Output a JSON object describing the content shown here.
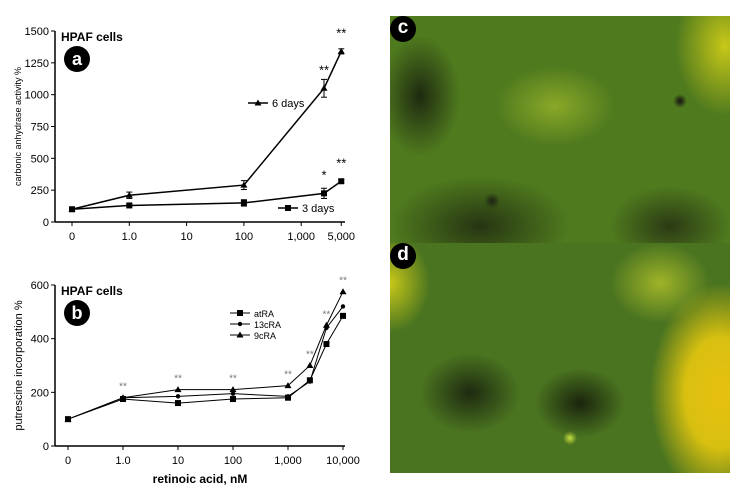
{
  "chart_data": [
    {
      "type": "line",
      "panel_label": "a",
      "annotation": "HPAF cells",
      "ylabel": "carbonic anhydrase activity %",
      "xlabel": "",
      "ylim": [
        0,
        1500
      ],
      "yticks": [
        "0",
        "250",
        "500",
        "750",
        "1000",
        "1250",
        "1500"
      ],
      "xtick_values": [
        0,
        1,
        10,
        100,
        1000,
        5000
      ],
      "xticks": [
        "0",
        "1.0",
        "10",
        "100",
        "1,000",
        "5,000"
      ],
      "x": [
        0,
        1,
        100,
        2500,
        5000
      ],
      "series": [
        {
          "name": "6 days",
          "marker": "triangle",
          "values": [
            100,
            210,
            290,
            1050,
            1340
          ],
          "errors": [
            10,
            25,
            35,
            70,
            20
          ],
          "significance": [
            "",
            "",
            "",
            "**",
            "**"
          ]
        },
        {
          "name": "3 days",
          "marker": "square",
          "values": [
            100,
            130,
            150,
            225,
            320
          ],
          "errors": [
            10,
            10,
            25,
            40,
            15
          ],
          "significance": [
            "",
            "",
            "",
            "*",
            "**"
          ]
        }
      ]
    },
    {
      "type": "line",
      "panel_label": "b",
      "annotation": "HPAF cells",
      "ylabel": "putrescine incorporation %",
      "xlabel": "retinoic acid, nM",
      "ylim": [
        0,
        600
      ],
      "yticks": [
        "0",
        "200",
        "400",
        "600"
      ],
      "xtick_values": [
        0,
        1,
        10,
        100,
        1000,
        10000
      ],
      "xticks": [
        "0",
        "1.0",
        "10",
        "100",
        "1,000",
        "10,000"
      ],
      "x": [
        0,
        1,
        10,
        100,
        1000,
        2500,
        5000,
        10000
      ],
      "significance": [
        "",
        "**",
        "**",
        "**",
        "**",
        "**",
        "**",
        "**"
      ],
      "series": [
        {
          "name": "atRA",
          "marker": "square",
          "values": [
            100,
            175,
            160,
            175,
            180,
            245,
            380,
            485
          ]
        },
        {
          "name": "13cRA",
          "marker": "dot",
          "values": [
            100,
            180,
            185,
            195,
            185,
            240,
            440,
            520
          ]
        },
        {
          "name": "9cRA",
          "marker": "triangle",
          "values": [
            100,
            180,
            210,
            210,
            225,
            300,
            450,
            575
          ]
        }
      ]
    }
  ],
  "images": [
    {
      "label": "c"
    },
    {
      "label": "d"
    }
  ]
}
